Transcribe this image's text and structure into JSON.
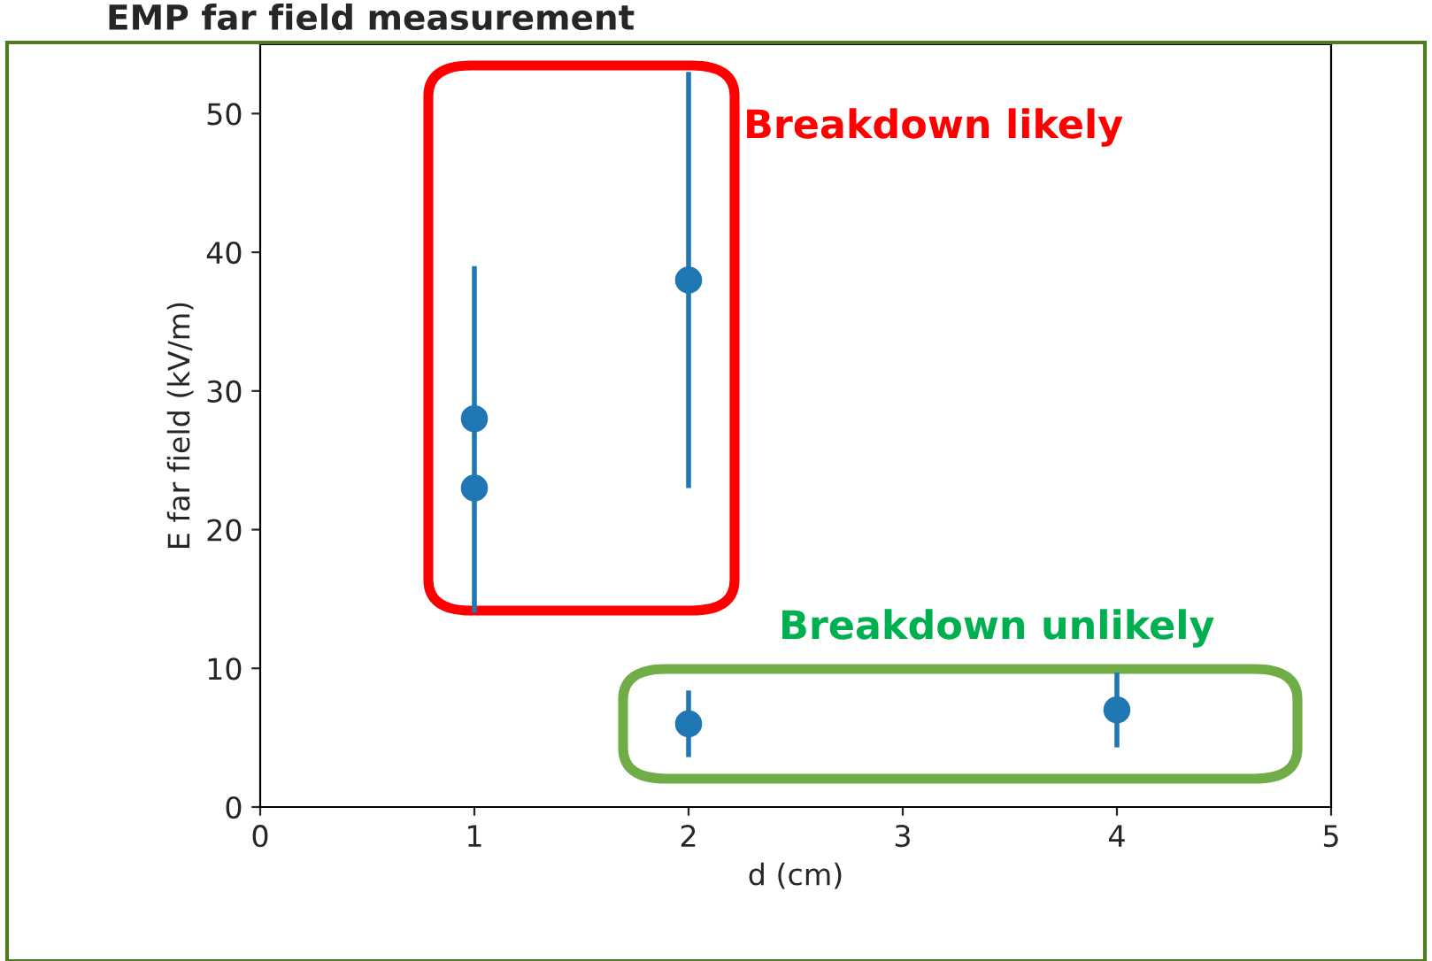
{
  "chart_data": {
    "type": "scatter",
    "title": "EMP far field measurement",
    "xlabel": "d (cm)",
    "ylabel": "E far field (kV/m)",
    "x": [
      1,
      1,
      2,
      2,
      4
    ],
    "series": [
      {
        "color": "#1f77b4",
        "values": [
          28,
          23,
          38,
          6,
          7
        ],
        "errors": [
          [
            14,
            39
          ],
          null,
          15,
          2.4,
          2.7
        ]
      }
    ],
    "xlim": [
      0,
      5
    ],
    "ylim": [
      0,
      55
    ],
    "xticks": [
      0,
      1,
      2,
      3,
      4,
      5
    ],
    "yticks": [
      0,
      10,
      20,
      30,
      40,
      50
    ],
    "marker": "circle",
    "grid": false,
    "annotations": [
      "Breakdown likely",
      "Breakdown unlikely"
    ]
  }
}
